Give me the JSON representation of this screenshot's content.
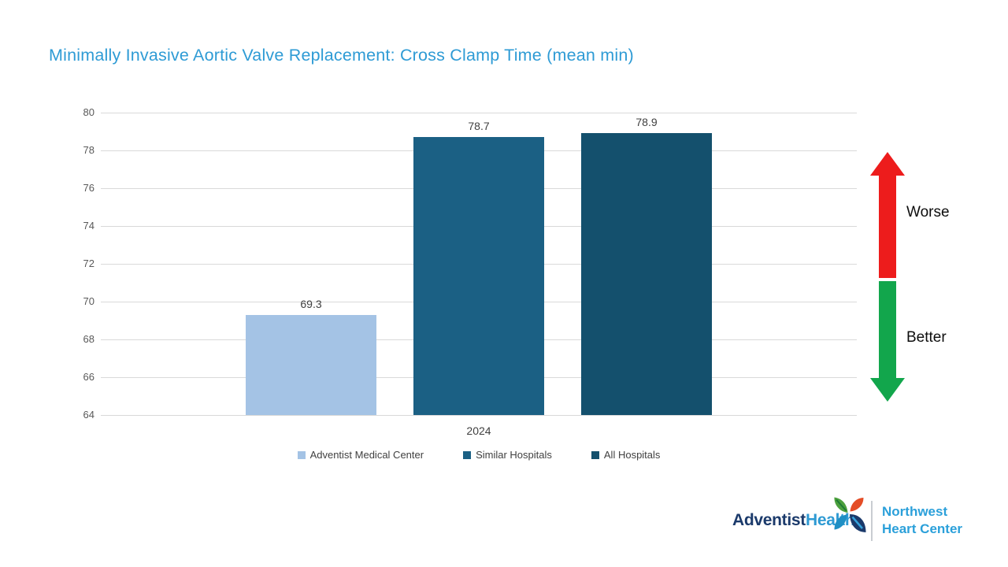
{
  "title": {
    "text": "Minimally Invasive Aortic Valve Replacement: Cross Clamp Time (mean min)",
    "color": "#2E9BD5"
  },
  "chart_data": {
    "type": "bar",
    "title": "Minimally Invasive Aortic Valve Replacement: Cross Clamp Time (mean min)",
    "categories": [
      "2024"
    ],
    "series": [
      {
        "name": "Adventist Medical Center",
        "values": [
          69.3
        ],
        "color": "#A4C3E5"
      },
      {
        "name": "Similar Hospitals",
        "values": [
          78.7
        ],
        "color": "#1B6084"
      },
      {
        "name": "All Hospitals",
        "values": [
          78.9
        ],
        "color": "#14506D"
      }
    ],
    "data_labels": [
      "69.3",
      "78.7",
      "78.9"
    ],
    "xlabel": "",
    "ylabel": "",
    "ylim": [
      64,
      80
    ],
    "ytick_step": 2,
    "yticks": [
      64,
      66,
      68,
      70,
      72,
      74,
      76,
      78,
      80
    ],
    "grid": true,
    "gridline_color": "#D9D9D9",
    "legend_position": "bottom"
  },
  "indicator": {
    "worse_label": "Worse",
    "better_label": "Better",
    "worse_color": "#ED1C1C",
    "better_color": "#12A64C"
  },
  "footer": {
    "brand_part1": "Adventist",
    "brand_part2": "Health",
    "brand_part1_color": "#1B3A6B",
    "brand_part2_color": "#2E9AD3",
    "org_line1": "Northwest",
    "org_line2": "Heart Center",
    "org_color": "#2BA0DA"
  }
}
